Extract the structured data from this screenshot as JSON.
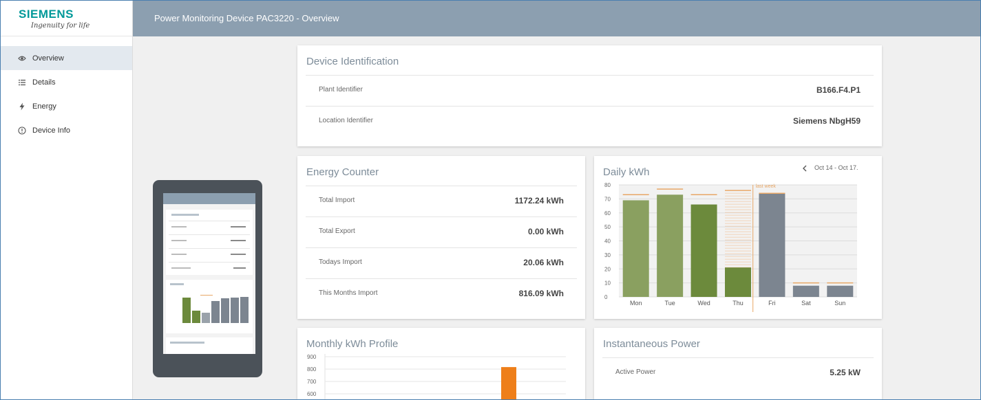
{
  "logo": {
    "brand": "SIEMENS",
    "tagline": "Ingenuity for life"
  },
  "header": {
    "title": "Power Monitoring Device PAC3220 - Overview"
  },
  "sidebar": {
    "items": [
      {
        "label": "Overview",
        "icon": "eye-icon",
        "active": true
      },
      {
        "label": "Details",
        "icon": "list-icon",
        "active": false
      },
      {
        "label": "Energy",
        "icon": "lightning-icon",
        "active": false
      },
      {
        "label": "Device Info",
        "icon": "info-circle-icon",
        "active": false
      }
    ]
  },
  "device_identification": {
    "title": "Device Identification",
    "rows": [
      {
        "label": "Plant Identifier",
        "value": "B166.F4.P1"
      },
      {
        "label": "Location Identifier",
        "value": "Siemens NbgH59"
      }
    ]
  },
  "energy_counter": {
    "title": "Energy Counter",
    "rows": [
      {
        "label": "Total Import",
        "value": "1172.24 kWh"
      },
      {
        "label": "Total Export",
        "value": "0.00 kWh"
      },
      {
        "label": "Todays Import",
        "value": "20.06 kWh"
      },
      {
        "label": "This Months Import",
        "value": "816.09 kWh"
      }
    ]
  },
  "daily_kwh": {
    "title": "Daily kWh",
    "date_range": "Oct 14 - Oct 17.",
    "last_week_label": "last week"
  },
  "monthly_profile": {
    "title": "Monthly kWh Profile"
  },
  "instantaneous_power": {
    "title": "Instantaneous Power",
    "rows": [
      {
        "label": "Active Power",
        "value": "5.25 kW"
      }
    ]
  },
  "colors": {
    "current_week_bar": "#8aa060",
    "today_bar": "#6c8a3c",
    "last_week_bar": "#7c8590",
    "last_week_marker": "#e8a766",
    "monthly_bar": "#ee7f1a",
    "header_bg": "#8c9fb0",
    "brand": "#009999"
  },
  "chart_data": [
    {
      "type": "bar",
      "title": "Daily kWh",
      "categories": [
        "Mon",
        "Tue",
        "Wed",
        "Thu",
        "Fri",
        "Sat",
        "Sun"
      ],
      "series": [
        {
          "name": "",
          "values": [
            69,
            73,
            66,
            21,
            74,
            8,
            8
          ]
        },
        {
          "name": "last week",
          "values": [
            73,
            77,
            73,
            76,
            74,
            10,
            10
          ]
        }
      ],
      "ylim": [
        0,
        80
      ],
      "yticks": [
        0,
        10,
        20,
        30,
        40,
        50,
        60,
        70,
        80
      ],
      "grid": true
    },
    {
      "type": "bar",
      "title": "Monthly kWh Profile",
      "yticks": [
        600,
        700,
        800,
        900
      ],
      "ylim": [
        600,
        900
      ],
      "values": [
        816.09
      ],
      "grid": true
    }
  ]
}
